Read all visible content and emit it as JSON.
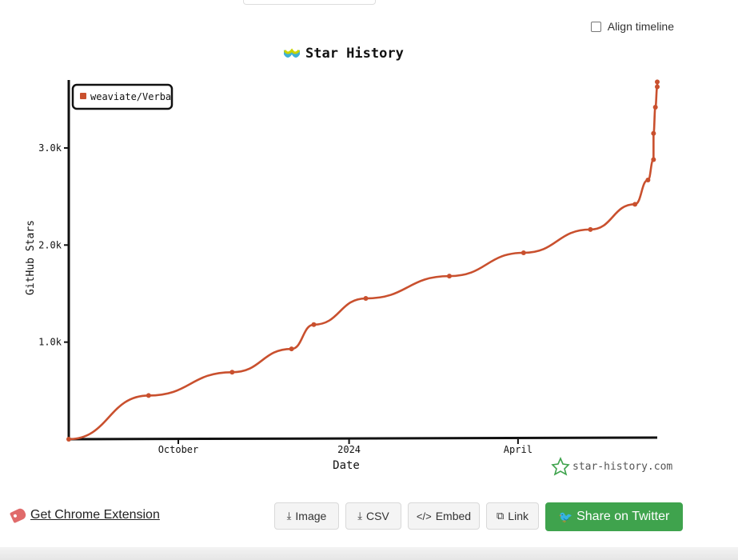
{
  "controls": {
    "align_timeline_label": "Align timeline"
  },
  "footer": {
    "chrome_extension_label": "Get Chrome Extension",
    "buttons": {
      "image": "Image",
      "csv": "CSV",
      "embed": "Embed",
      "link": "Link",
      "twitter": "Share on Twitter"
    },
    "twitter_color": "#3fa34d"
  },
  "watermark": "star-history.com",
  "chart_data": {
    "type": "line",
    "title": "Star History",
    "xlabel": "Date",
    "ylabel": "GitHub Stars",
    "x_ticks": [
      "October",
      "2024",
      "April"
    ],
    "y_ticks": [
      1000,
      2000,
      3000
    ],
    "y_tick_labels": [
      "1.0k",
      "2.0k",
      "3.0k"
    ],
    "ylim": [
      0,
      3700
    ],
    "legend_position": "top-left",
    "grid": false,
    "series": [
      {
        "name": "weaviate/Verba",
        "color": "#c9502e",
        "points": [
          {
            "x": "2023-08-03",
            "y": 0
          },
          {
            "x": "2023-09-15",
            "y": 450
          },
          {
            "x": "2023-10-30",
            "y": 690
          },
          {
            "x": "2023-12-01",
            "y": 930
          },
          {
            "x": "2023-12-13",
            "y": 1180
          },
          {
            "x": "2024-01-10",
            "y": 1450
          },
          {
            "x": "2024-02-24",
            "y": 1680
          },
          {
            "x": "2024-04-04",
            "y": 1920
          },
          {
            "x": "2024-05-10",
            "y": 2160
          },
          {
            "x": "2024-06-03",
            "y": 2420
          },
          {
            "x": "2024-06-10",
            "y": 2670
          },
          {
            "x": "2024-06-13",
            "y": 2880
          },
          {
            "x": "2024-06-13",
            "y": 3150
          },
          {
            "x": "2024-06-14",
            "y": 3420
          },
          {
            "x": "2024-06-15",
            "y": 3630
          },
          {
            "x": "2024-06-15",
            "y": 3680
          }
        ]
      }
    ]
  }
}
